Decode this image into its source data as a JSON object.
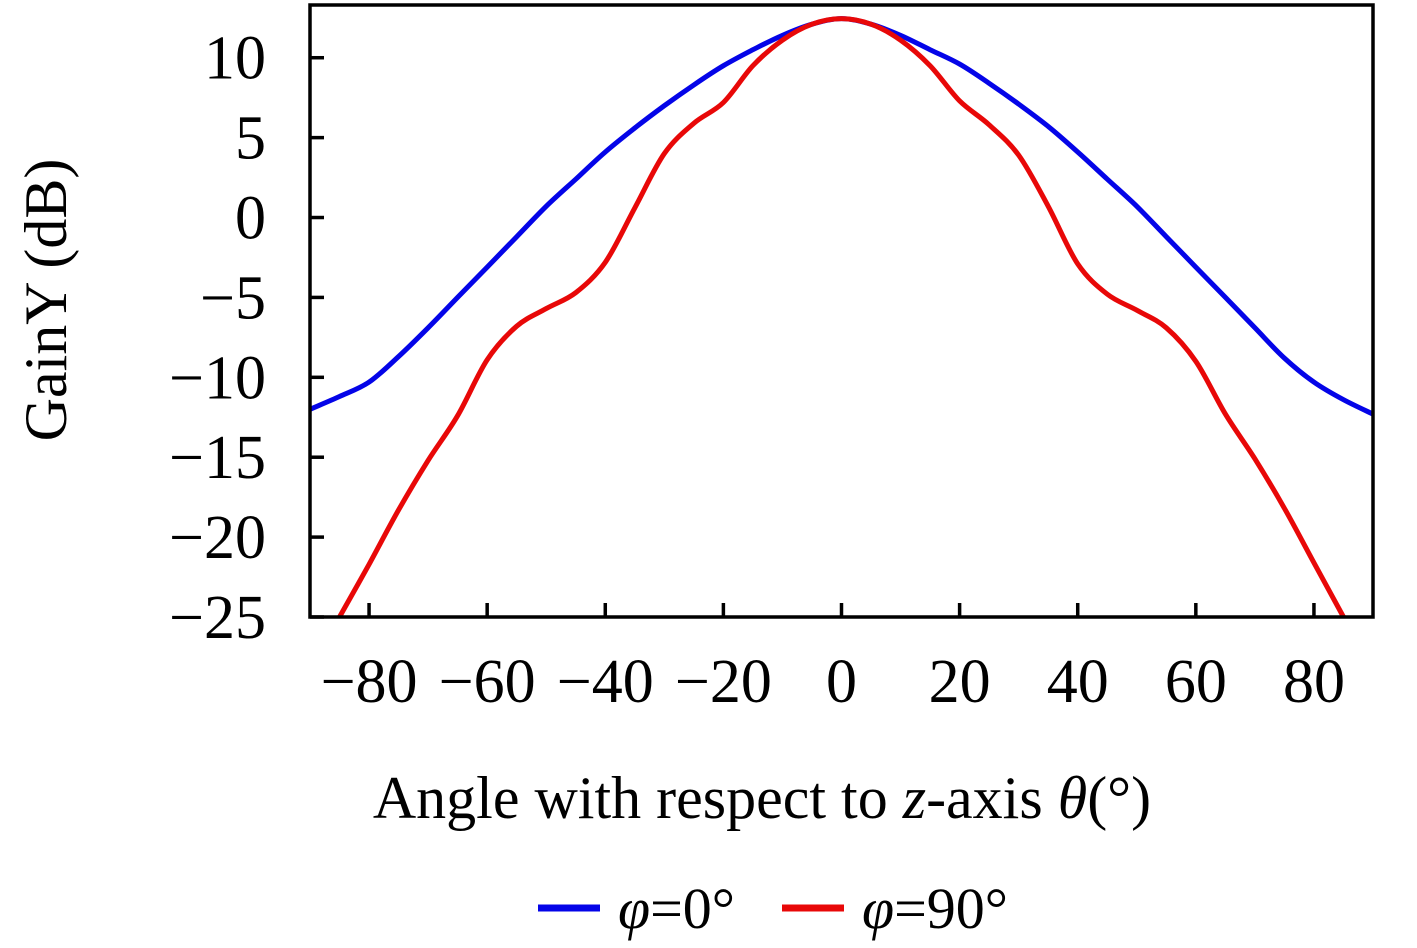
{
  "figure": {
    "background": "#ffffff",
    "frame_color": "#000000"
  },
  "chart_data": {
    "type": "line",
    "title": "",
    "ylabel": "GainY (dB)",
    "xlabel_parts": [
      {
        "t": "Angle with respect to ",
        "i": false
      },
      {
        "t": "z",
        "i": true
      },
      {
        "t": "-axis ",
        "i": false
      },
      {
        "t": "θ",
        "i": true
      },
      {
        "t": "(°)",
        "i": false
      }
    ],
    "xlim": [
      -90,
      90
    ],
    "ylim": [
      -25,
      13.3
    ],
    "xticks": [
      -80,
      -60,
      -40,
      -20,
      0,
      20,
      40,
      60,
      80
    ],
    "yticks": [
      10,
      5,
      0,
      -5,
      -10,
      -15,
      -20,
      -25
    ],
    "grid": false,
    "legend_position": "below-chart",
    "series": [
      {
        "name": "phi-0",
        "label_parts": [
          {
            "t": "φ",
            "i": true
          },
          {
            "t": "=0°",
            "i": false
          }
        ],
        "color": "#0404e8",
        "x": [
          -90,
          -85,
          -80,
          -75,
          -70,
          -65,
          -60,
          -55,
          -50,
          -45,
          -40,
          -35,
          -30,
          -25,
          -20,
          -15,
          -10,
          -5,
          0,
          5,
          10,
          15,
          20,
          25,
          30,
          35,
          40,
          45,
          50,
          55,
          60,
          65,
          70,
          75,
          80,
          85,
          90
        ],
        "y": [
          -12.0,
          -11.2,
          -10.3,
          -8.7,
          -6.9,
          -5.0,
          -3.1,
          -1.2,
          0.7,
          2.4,
          4.1,
          5.6,
          7.0,
          8.3,
          9.5,
          10.5,
          11.4,
          12.1,
          12.45,
          12.1,
          11.4,
          10.5,
          9.6,
          8.4,
          7.1,
          5.7,
          4.1,
          2.4,
          0.7,
          -1.2,
          -3.1,
          -5.0,
          -6.9,
          -8.8,
          -10.3,
          -11.4,
          -12.3
        ]
      },
      {
        "name": "phi-90",
        "label_parts": [
          {
            "t": "φ",
            "i": true
          },
          {
            "t": "=90°",
            "i": false
          }
        ],
        "color": "#e80808",
        "x": [
          -85,
          -80,
          -75,
          -70,
          -65,
          -60,
          -55,
          -50,
          -45,
          -40,
          -35,
          -30,
          -25,
          -20,
          -15,
          -10,
          -5,
          0,
          5,
          10,
          15,
          20,
          25,
          30,
          35,
          40,
          45,
          50,
          55,
          60,
          65,
          70,
          75,
          80,
          85
        ],
        "y": [
          -25.0,
          -21.7,
          -18.3,
          -15.2,
          -12.4,
          -8.9,
          -6.8,
          -5.7,
          -4.7,
          -2.8,
          0.6,
          4.0,
          5.9,
          7.2,
          9.5,
          11.1,
          12.1,
          12.45,
          12.1,
          11.1,
          9.5,
          7.3,
          5.8,
          3.9,
          0.7,
          -2.9,
          -4.8,
          -5.8,
          -6.9,
          -9.0,
          -12.3,
          -15.1,
          -18.2,
          -21.6,
          -25.0
        ]
      }
    ]
  }
}
